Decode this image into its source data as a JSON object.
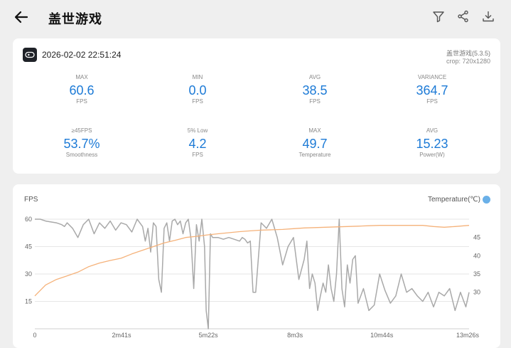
{
  "header": {
    "title": "盖世游戏",
    "icons": [
      "back-arrow-icon",
      "filter-icon",
      "share-icon",
      "download-icon"
    ]
  },
  "summary": {
    "datetime": "2026-02-02 22:51:24",
    "app_version": "盖世游戏(5.3.5)",
    "crop": "crop: 720x1280",
    "stats": [
      {
        "label": "MAX",
        "value": "60.6",
        "unit": "FPS"
      },
      {
        "label": "MIN",
        "value": "0.0",
        "unit": "FPS"
      },
      {
        "label": "AVG",
        "value": "38.5",
        "unit": "FPS"
      },
      {
        "label": "VARIANCE",
        "value": "364.7",
        "unit": "FPS"
      },
      {
        "label": "≥45FPS",
        "value": "53.7%",
        "unit": "Smoothness"
      },
      {
        "label": "5% Low",
        "value": "4.2",
        "unit": "FPS"
      },
      {
        "label": "MAX",
        "value": "49.7",
        "unit": "Temperature"
      },
      {
        "label": "AVG",
        "value": "15.23",
        "unit": "Power(W)"
      }
    ]
  },
  "chart_data": {
    "type": "line",
    "ylabel": "FPS",
    "y2label": "Temperature(℃)",
    "x_tick_labels": [
      "0",
      "2m41s",
      "5m22s",
      "8m3s",
      "10m44s",
      "13m26s"
    ],
    "x_ticks_seconds": [
      0,
      161,
      322,
      483,
      644,
      806
    ],
    "y_ticks": [
      15,
      30,
      45,
      60
    ],
    "y_tick_labels": [
      "15",
      "30",
      "45",
      "60"
    ],
    "ylim": [
      0,
      60
    ],
    "y2_tick_labels": [
      "45",
      "40",
      "35",
      "30"
    ],
    "y2_ticks": [
      45,
      40,
      35,
      30
    ],
    "y2lim": [
      20,
      50
    ],
    "grid": true,
    "series": [
      {
        "axis": "left",
        "color": "#a9a9a9",
        "x": [
          0,
          10,
          20,
          40,
          50,
          55,
          60,
          70,
          80,
          90,
          100,
          110,
          120,
          130,
          140,
          150,
          160,
          170,
          180,
          190,
          200,
          205,
          210,
          215,
          220,
          225,
          230,
          235,
          240,
          245,
          250,
          255,
          260,
          265,
          270,
          275,
          280,
          285,
          290,
          295,
          300,
          305,
          310,
          315,
          318,
          322,
          326,
          330,
          340,
          350,
          360,
          370,
          380,
          385,
          390,
          395,
          400,
          405,
          410,
          420,
          430,
          440,
          450,
          460,
          470,
          480,
          490,
          500,
          505,
          510,
          515,
          520,
          525,
          530,
          535,
          540,
          545,
          550,
          555,
          560,
          565,
          570,
          575,
          580,
          585,
          590,
          595,
          600,
          610,
          620,
          630,
          640,
          650,
          660,
          670,
          680,
          690,
          700,
          710,
          720,
          730,
          740,
          750,
          760,
          770,
          780,
          790,
          800,
          806
        ],
        "y": [
          60,
          60,
          59,
          58,
          57,
          56,
          58,
          55,
          50,
          57,
          60,
          52,
          58,
          55,
          59,
          54,
          58,
          57,
          53,
          60,
          56,
          48,
          55,
          42,
          58,
          56,
          27,
          20,
          55,
          58,
          48,
          59,
          60,
          57,
          59,
          52,
          58,
          60,
          49,
          22,
          57,
          48,
          60,
          45,
          10,
          0,
          52,
          50,
          50,
          49,
          50,
          49,
          48,
          50,
          49,
          47,
          48,
          20,
          20,
          58,
          55,
          60,
          50,
          35,
          45,
          50,
          27,
          38,
          48,
          22,
          30,
          25,
          10,
          18,
          25,
          20,
          35,
          22,
          15,
          30,
          60,
          22,
          12,
          35,
          25,
          38,
          40,
          14,
          22,
          10,
          13,
          30,
          21,
          14,
          18,
          30,
          20,
          22,
          18,
          15,
          20,
          12,
          20,
          18,
          22,
          10,
          20,
          12,
          20
        ]
      },
      {
        "axis": "right",
        "color": "#f5b27a",
        "x": [
          0,
          20,
          40,
          60,
          80,
          100,
          120,
          140,
          160,
          180,
          200,
          220,
          240,
          260,
          280,
          300,
          320,
          340,
          360,
          380,
          400,
          420,
          440,
          460,
          480,
          500,
          520,
          540,
          560,
          580,
          600,
          620,
          640,
          660,
          680,
          700,
          720,
          740,
          760,
          780,
          806
        ],
        "y": [
          29,
          32,
          33.5,
          34.5,
          35.5,
          37,
          38,
          38.7,
          39.3,
          40.5,
          41.5,
          42.5,
          43.5,
          44.2,
          45,
          45.3,
          45.7,
          46,
          46.3,
          46.6,
          46.8,
          47,
          47.1,
          47.2,
          47.4,
          47.6,
          47.7,
          47.8,
          47.9,
          48,
          48.1,
          48.2,
          48.3,
          48.3,
          48.3,
          48.3,
          48.3,
          48,
          47.8,
          48,
          48.3
        ]
      }
    ]
  }
}
